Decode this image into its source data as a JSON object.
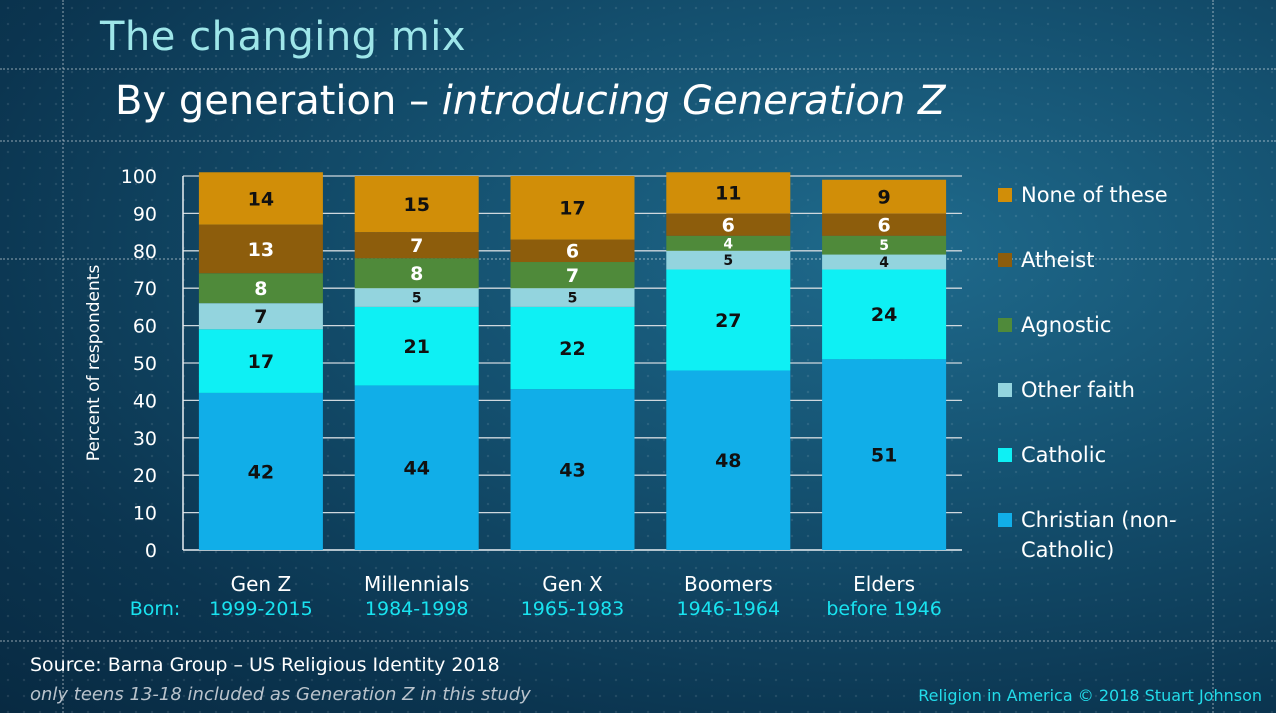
{
  "title": "The changing mix",
  "subtitle": {
    "prefix": "By generation – ",
    "emphasis": "introducing Generation Z"
  },
  "chart_data": {
    "type": "bar",
    "stacked": true,
    "categories": [
      "Gen Z",
      "Millennials",
      "Gen X",
      "Boomers",
      "Elders"
    ],
    "born": [
      "1999-2015",
      "1984-1998",
      "1965-1983",
      "1946-1964",
      "before 1946"
    ],
    "born_prefix": "Born:",
    "ylabel": "Percent of respondents",
    "ylim": [
      0,
      100
    ],
    "yticks": [
      0,
      10,
      20,
      30,
      40,
      50,
      60,
      70,
      80,
      90,
      100
    ],
    "gridlines": true,
    "legend_position": "right",
    "series": [
      {
        "name": "Christian (non-Catholic)",
        "color": "#11aee8",
        "label_color": "#111111",
        "values": [
          42,
          44,
          43,
          48,
          51
        ]
      },
      {
        "name": "Catholic",
        "color": "#0ef0f4",
        "label_color": "#111111",
        "values": [
          17,
          21,
          22,
          27,
          24
        ]
      },
      {
        "name": "Other faith",
        "color": "#93d4de",
        "label_color": "#111111",
        "values": [
          7,
          5,
          5,
          5,
          4
        ]
      },
      {
        "name": "Agnostic",
        "color": "#4f8a3a",
        "label_color": "#ffffff",
        "values": [
          8,
          8,
          7,
          4,
          5
        ]
      },
      {
        "name": "Atheist",
        "color": "#8d5d0c",
        "label_color": "#ffffff",
        "values": [
          13,
          7,
          6,
          6,
          6
        ]
      },
      {
        "name": "None of these",
        "color": "#d18e08",
        "label_color": "#111111",
        "values": [
          14,
          15,
          17,
          11,
          9
        ]
      }
    ]
  },
  "legend": [
    {
      "label": "None of these",
      "color": "#d18e08"
    },
    {
      "label": "Atheist",
      "color": "#8d5d0c"
    },
    {
      "label": "Agnostic",
      "color": "#4f8a3a"
    },
    {
      "label": "Other faith",
      "color": "#93d4de"
    },
    {
      "label": "Catholic",
      "color": "#0ef0f4"
    },
    {
      "label": "Christian (non-Catholic)",
      "color": "#11aee8"
    }
  ],
  "footer": {
    "source": "Source: Barna Group – US Religious Identity 2018",
    "note": "only teens 13-18 included as Generation Z in this study",
    "credit": "Religion in America © 2018 Stuart Johnson"
  }
}
